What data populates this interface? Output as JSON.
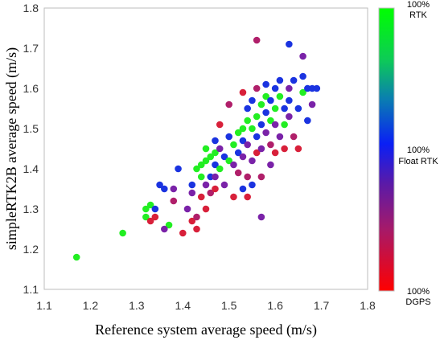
{
  "chart_data": {
    "type": "scatter",
    "xlabel": "Reference system average speed (m/s)",
    "ylabel": "simpleRTK2B average speed (m/s)",
    "xlim": [
      1.1,
      1.8
    ],
    "ylim": [
      1.1,
      1.8
    ],
    "xticks": [
      "1.1",
      "1.2",
      "1.3",
      "1.4",
      "1.5",
      "1.6",
      "1.7",
      "1.8"
    ],
    "yticks": [
      "1.1",
      "1.2",
      "1.3",
      "1.4",
      "1.5",
      "1.6",
      "1.7",
      "1.8"
    ],
    "grid": false,
    "colorbar": {
      "labels": [
        {
          "pct": "100%",
          "name": "RTK"
        },
        {
          "pct": "100%",
          "name": "Float RTK"
        },
        {
          "pct": "100%",
          "name": "DGPS"
        }
      ],
      "colors": {
        "rtk": "#00ff00",
        "float": "#0000ff",
        "dgps": "#ff0000"
      }
    },
    "points": [
      {
        "x": 1.17,
        "y": 1.18,
        "c": "rtk"
      },
      {
        "x": 1.27,
        "y": 1.24,
        "c": "rtk"
      },
      {
        "x": 1.32,
        "y": 1.28,
        "c": "rtk"
      },
      {
        "x": 1.32,
        "y": 1.3,
        "c": "rtk"
      },
      {
        "x": 1.33,
        "y": 1.31,
        "c": "rtk"
      },
      {
        "x": 1.34,
        "y": 1.3,
        "c": "float"
      },
      {
        "x": 1.35,
        "y": 1.36,
        "c": "float"
      },
      {
        "x": 1.36,
        "y": 1.35,
        "c": "float"
      },
      {
        "x": 1.37,
        "y": 1.26,
        "c": "rtk"
      },
      {
        "x": 1.36,
        "y": 1.25,
        "c": "mix"
      },
      {
        "x": 1.34,
        "y": 1.28,
        "c": "dgps"
      },
      {
        "x": 1.33,
        "y": 1.27,
        "c": "dgps"
      },
      {
        "x": 1.38,
        "y": 1.35,
        "c": "mix"
      },
      {
        "x": 1.38,
        "y": 1.32,
        "c": "mixr"
      },
      {
        "x": 1.39,
        "y": 1.4,
        "c": "float"
      },
      {
        "x": 1.4,
        "y": 1.24,
        "c": "dgps"
      },
      {
        "x": 1.41,
        "y": 1.3,
        "c": "mix"
      },
      {
        "x": 1.42,
        "y": 1.36,
        "c": "float"
      },
      {
        "x": 1.42,
        "y": 1.34,
        "c": "mix"
      },
      {
        "x": 1.42,
        "y": 1.27,
        "c": "dgps"
      },
      {
        "x": 1.43,
        "y": 1.25,
        "c": "dgps"
      },
      {
        "x": 1.43,
        "y": 1.28,
        "c": "mixr"
      },
      {
        "x": 1.43,
        "y": 1.4,
        "c": "rtk"
      },
      {
        "x": 1.44,
        "y": 1.41,
        "c": "rtk"
      },
      {
        "x": 1.44,
        "y": 1.38,
        "c": "rtk"
      },
      {
        "x": 1.44,
        "y": 1.33,
        "c": "dgps"
      },
      {
        "x": 1.45,
        "y": 1.42,
        "c": "rtk"
      },
      {
        "x": 1.45,
        "y": 1.45,
        "c": "rtk"
      },
      {
        "x": 1.45,
        "y": 1.36,
        "c": "mix"
      },
      {
        "x": 1.45,
        "y": 1.3,
        "c": "dgps"
      },
      {
        "x": 1.46,
        "y": 1.43,
        "c": "rtk"
      },
      {
        "x": 1.46,
        "y": 1.38,
        "c": "float"
      },
      {
        "x": 1.46,
        "y": 1.34,
        "c": "mixr"
      },
      {
        "x": 1.47,
        "y": 1.44,
        "c": "rtk"
      },
      {
        "x": 1.47,
        "y": 1.47,
        "c": "float"
      },
      {
        "x": 1.47,
        "y": 1.41,
        "c": "float"
      },
      {
        "x": 1.47,
        "y": 1.38,
        "c": "mix"
      },
      {
        "x": 1.47,
        "y": 1.35,
        "c": "dgps"
      },
      {
        "x": 1.48,
        "y": 1.4,
        "c": "rtk"
      },
      {
        "x": 1.48,
        "y": 1.45,
        "c": "mix"
      },
      {
        "x": 1.48,
        "y": 1.51,
        "c": "dgps"
      },
      {
        "x": 1.49,
        "y": 1.43,
        "c": "float"
      },
      {
        "x": 1.49,
        "y": 1.36,
        "c": "mix"
      },
      {
        "x": 1.5,
        "y": 1.42,
        "c": "rtk"
      },
      {
        "x": 1.5,
        "y": 1.48,
        "c": "float"
      },
      {
        "x": 1.5,
        "y": 1.56,
        "c": "mixr"
      },
      {
        "x": 1.51,
        "y": 1.46,
        "c": "rtk"
      },
      {
        "x": 1.51,
        "y": 1.41,
        "c": "mix"
      },
      {
        "x": 1.51,
        "y": 1.33,
        "c": "dgps"
      },
      {
        "x": 1.52,
        "y": 1.49,
        "c": "rtk"
      },
      {
        "x": 1.52,
        "y": 1.44,
        "c": "float"
      },
      {
        "x": 1.52,
        "y": 1.39,
        "c": "mixr"
      },
      {
        "x": 1.53,
        "y": 1.5,
        "c": "rtk"
      },
      {
        "x": 1.53,
        "y": 1.47,
        "c": "float"
      },
      {
        "x": 1.53,
        "y": 1.43,
        "c": "mix"
      },
      {
        "x": 1.53,
        "y": 1.35,
        "c": "float"
      },
      {
        "x": 1.53,
        "y": 1.59,
        "c": "dgps"
      },
      {
        "x": 1.54,
        "y": 1.52,
        "c": "rtk"
      },
      {
        "x": 1.54,
        "y": 1.55,
        "c": "float"
      },
      {
        "x": 1.54,
        "y": 1.46,
        "c": "mix"
      },
      {
        "x": 1.54,
        "y": 1.38,
        "c": "mixr"
      },
      {
        "x": 1.54,
        "y": 1.33,
        "c": "dgps"
      },
      {
        "x": 1.55,
        "y": 1.5,
        "c": "rtk"
      },
      {
        "x": 1.55,
        "y": 1.57,
        "c": "float"
      },
      {
        "x": 1.55,
        "y": 1.42,
        "c": "mix"
      },
      {
        "x": 1.55,
        "y": 1.36,
        "c": "float"
      },
      {
        "x": 1.56,
        "y": 1.53,
        "c": "rtk"
      },
      {
        "x": 1.56,
        "y": 1.48,
        "c": "float"
      },
      {
        "x": 1.56,
        "y": 1.6,
        "c": "mixr"
      },
      {
        "x": 1.56,
        "y": 1.44,
        "c": "dgps"
      },
      {
        "x": 1.56,
        "y": 1.72,
        "c": "mixr"
      },
      {
        "x": 1.57,
        "y": 1.56,
        "c": "rtk"
      },
      {
        "x": 1.57,
        "y": 1.51,
        "c": "float"
      },
      {
        "x": 1.57,
        "y": 1.45,
        "c": "mix"
      },
      {
        "x": 1.57,
        "y": 1.38,
        "c": "mixr"
      },
      {
        "x": 1.57,
        "y": 1.28,
        "c": "mix"
      },
      {
        "x": 1.58,
        "y": 1.58,
        "c": "rtk"
      },
      {
        "x": 1.58,
        "y": 1.54,
        "c": "float"
      },
      {
        "x": 1.58,
        "y": 1.49,
        "c": "mix"
      },
      {
        "x": 1.58,
        "y": 1.61,
        "c": "float"
      },
      {
        "x": 1.59,
        "y": 1.52,
        "c": "rtk"
      },
      {
        "x": 1.59,
        "y": 1.57,
        "c": "float"
      },
      {
        "x": 1.59,
        "y": 1.46,
        "c": "mixr"
      },
      {
        "x": 1.59,
        "y": 1.41,
        "c": "mix"
      },
      {
        "x": 1.6,
        "y": 1.55,
        "c": "rtk"
      },
      {
        "x": 1.6,
        "y": 1.6,
        "c": "float"
      },
      {
        "x": 1.6,
        "y": 1.51,
        "c": "mix"
      },
      {
        "x": 1.6,
        "y": 1.44,
        "c": "dgps"
      },
      {
        "x": 1.61,
        "y": 1.58,
        "c": "rtk"
      },
      {
        "x": 1.61,
        "y": 1.62,
        "c": "float"
      },
      {
        "x": 1.61,
        "y": 1.48,
        "c": "mix"
      },
      {
        "x": 1.62,
        "y": 1.55,
        "c": "float"
      },
      {
        "x": 1.62,
        "y": 1.51,
        "c": "rtk"
      },
      {
        "x": 1.62,
        "y": 1.45,
        "c": "dgps"
      },
      {
        "x": 1.63,
        "y": 1.71,
        "c": "float"
      },
      {
        "x": 1.63,
        "y": 1.6,
        "c": "mix"
      },
      {
        "x": 1.63,
        "y": 1.57,
        "c": "float"
      },
      {
        "x": 1.63,
        "y": 1.53,
        "c": "mix"
      },
      {
        "x": 1.64,
        "y": 1.62,
        "c": "float"
      },
      {
        "x": 1.64,
        "y": 1.48,
        "c": "mixr"
      },
      {
        "x": 1.65,
        "y": 1.55,
        "c": "float"
      },
      {
        "x": 1.65,
        "y": 1.45,
        "c": "dgps"
      },
      {
        "x": 1.66,
        "y": 1.68,
        "c": "mix"
      },
      {
        "x": 1.66,
        "y": 1.63,
        "c": "float"
      },
      {
        "x": 1.66,
        "y": 1.59,
        "c": "rtk"
      },
      {
        "x": 1.67,
        "y": 1.6,
        "c": "float"
      },
      {
        "x": 1.67,
        "y": 1.52,
        "c": "float"
      },
      {
        "x": 1.68,
        "y": 1.6,
        "c": "float"
      },
      {
        "x": 1.68,
        "y": 1.56,
        "c": "mix"
      },
      {
        "x": 1.69,
        "y": 1.6,
        "c": "float"
      }
    ]
  }
}
